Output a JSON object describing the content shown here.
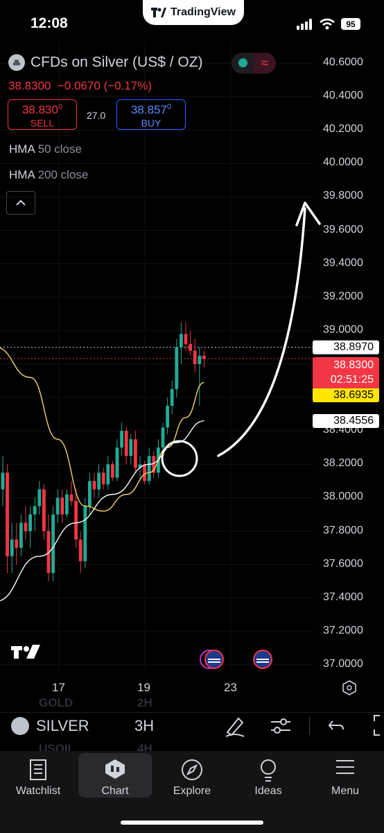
{
  "status_bar": {
    "time": "12:08",
    "app_pill": "TradingView",
    "battery": "95"
  },
  "header": {
    "symbol_title": "CFDs on Silver (US$ / OZ)",
    "last_price": "38.8300",
    "change": "−0.0670",
    "change_pct": "(−0.17%)",
    "sell": {
      "price_main": "38.830",
      "price_sup": "0",
      "label": "SELL"
    },
    "buy": {
      "price_main": "38.857",
      "price_sup": "0",
      "label": "BUY"
    },
    "spread": "27.0"
  },
  "indicators": [
    {
      "name": "HMA",
      "params": "50 close"
    },
    {
      "name": "HMA",
      "params": "200 close"
    }
  ],
  "price_axis": {
    "labels": [
      "40.6000",
      "40.4000",
      "40.2000",
      "40.0000",
      "39.8000",
      "39.6000",
      "39.4000",
      "39.2000",
      "39.0000",
      "38.4000",
      "38.2000",
      "38.0000",
      "37.8000",
      "37.6000",
      "37.4000",
      "37.2000",
      "37.0000"
    ],
    "tag_high": "38.8970",
    "tag_last": "38.8300",
    "tag_countdown": "02:51:25",
    "tag_hma50": "38.6935",
    "tag_hma200": "38.4556"
  },
  "time_axis": {
    "labels": [
      "17",
      "19",
      "23"
    ]
  },
  "toolbar": {
    "symbol": "SILVER",
    "interval": "3H",
    "ghost_symbols": [
      "GOLD",
      "USOIL"
    ],
    "ghost_intervals": [
      "2H",
      "4H"
    ]
  },
  "nav": {
    "watchlist": "Watchlist",
    "chart": "Chart",
    "explore": "Explore",
    "ideas": "Ideas",
    "menu": "Menu"
  },
  "colors": {
    "up": "#22ab94",
    "down": "#f23645",
    "hma50": "#f5d46b",
    "hma200": "#ffffff",
    "background": "#000000"
  },
  "chart_data": {
    "type": "candlestick",
    "interval": "3H",
    "x_ticks": [
      "17",
      "19",
      "23"
    ],
    "ylim": [
      37.0,
      40.6
    ],
    "candles": [
      [
        38.05,
        38.25,
        37.95,
        38.15
      ],
      [
        38.15,
        38.2,
        37.55,
        37.65
      ],
      [
        37.65,
        37.85,
        37.55,
        37.75
      ],
      [
        37.75,
        37.85,
        37.6,
        37.7
      ],
      [
        37.7,
        37.9,
        37.65,
        37.85
      ],
      [
        37.85,
        37.95,
        37.75,
        37.8
      ],
      [
        37.8,
        37.95,
        37.7,
        37.9
      ],
      [
        37.9,
        38.0,
        37.8,
        37.95
      ],
      [
        37.95,
        38.1,
        37.9,
        38.05
      ],
      [
        38.05,
        38.08,
        37.75,
        37.8
      ],
      [
        37.8,
        37.9,
        37.5,
        37.55
      ],
      [
        37.55,
        37.95,
        37.5,
        37.9
      ],
      [
        37.9,
        38.05,
        37.85,
        38.0
      ],
      [
        38.0,
        38.05,
        37.85,
        37.9
      ],
      [
        37.9,
        38.05,
        37.88,
        38.02
      ],
      [
        38.02,
        38.1,
        37.95,
        37.98
      ],
      [
        37.98,
        38.05,
        37.7,
        37.75
      ],
      [
        37.75,
        37.8,
        37.55,
        37.62
      ],
      [
        37.62,
        38.0,
        37.58,
        37.95
      ],
      [
        37.95,
        38.15,
        37.9,
        38.1
      ],
      [
        38.1,
        38.15,
        38.0,
        38.05
      ],
      [
        38.05,
        38.2,
        38.0,
        38.15
      ],
      [
        38.15,
        38.18,
        38.05,
        38.08
      ],
      [
        38.08,
        38.25,
        38.05,
        38.2
      ],
      [
        38.2,
        38.22,
        38.1,
        38.12
      ],
      [
        38.12,
        38.35,
        38.1,
        38.3
      ],
      [
        38.3,
        38.45,
        38.25,
        38.4
      ],
      [
        38.4,
        38.42,
        38.2,
        38.25
      ],
      [
        38.25,
        38.38,
        38.2,
        38.35
      ],
      [
        38.35,
        38.4,
        38.15,
        38.18
      ],
      [
        38.18,
        38.25,
        38.1,
        38.2
      ],
      [
        38.2,
        38.22,
        38.08,
        38.1
      ],
      [
        38.1,
        38.3,
        38.08,
        38.25
      ],
      [
        38.25,
        38.28,
        38.12,
        38.15
      ],
      [
        38.15,
        38.35,
        38.12,
        38.3
      ],
      [
        38.3,
        38.45,
        38.25,
        38.42
      ],
      [
        38.42,
        38.6,
        38.38,
        38.55
      ],
      [
        38.55,
        38.7,
        38.5,
        38.65
      ],
      [
        38.65,
        38.95,
        38.6,
        38.9
      ],
      [
        38.9,
        39.05,
        38.8,
        38.98
      ],
      [
        38.98,
        39.05,
        38.88,
        38.92
      ],
      [
        38.92,
        39.0,
        38.85,
        38.88
      ],
      [
        38.88,
        38.95,
        38.75,
        38.8
      ],
      [
        38.8,
        38.9,
        38.55,
        38.85
      ],
      [
        38.85,
        38.88,
        38.78,
        38.83
      ]
    ],
    "hma50": [
      [
        0,
        38.9
      ],
      [
        6,
        38.72
      ],
      [
        12,
        38.35
      ],
      [
        18,
        37.95
      ],
      [
        22,
        37.92
      ],
      [
        27,
        38.02
      ],
      [
        32,
        38.15
      ],
      [
        36,
        38.3
      ],
      [
        40,
        38.48
      ],
      [
        44,
        38.69
      ]
    ],
    "hma200": [
      [
        0,
        37.38
      ],
      [
        8,
        37.65
      ],
      [
        16,
        37.85
      ],
      [
        24,
        38.02
      ],
      [
        32,
        38.2
      ],
      [
        38,
        38.33
      ],
      [
        44,
        38.46
      ]
    ]
  }
}
